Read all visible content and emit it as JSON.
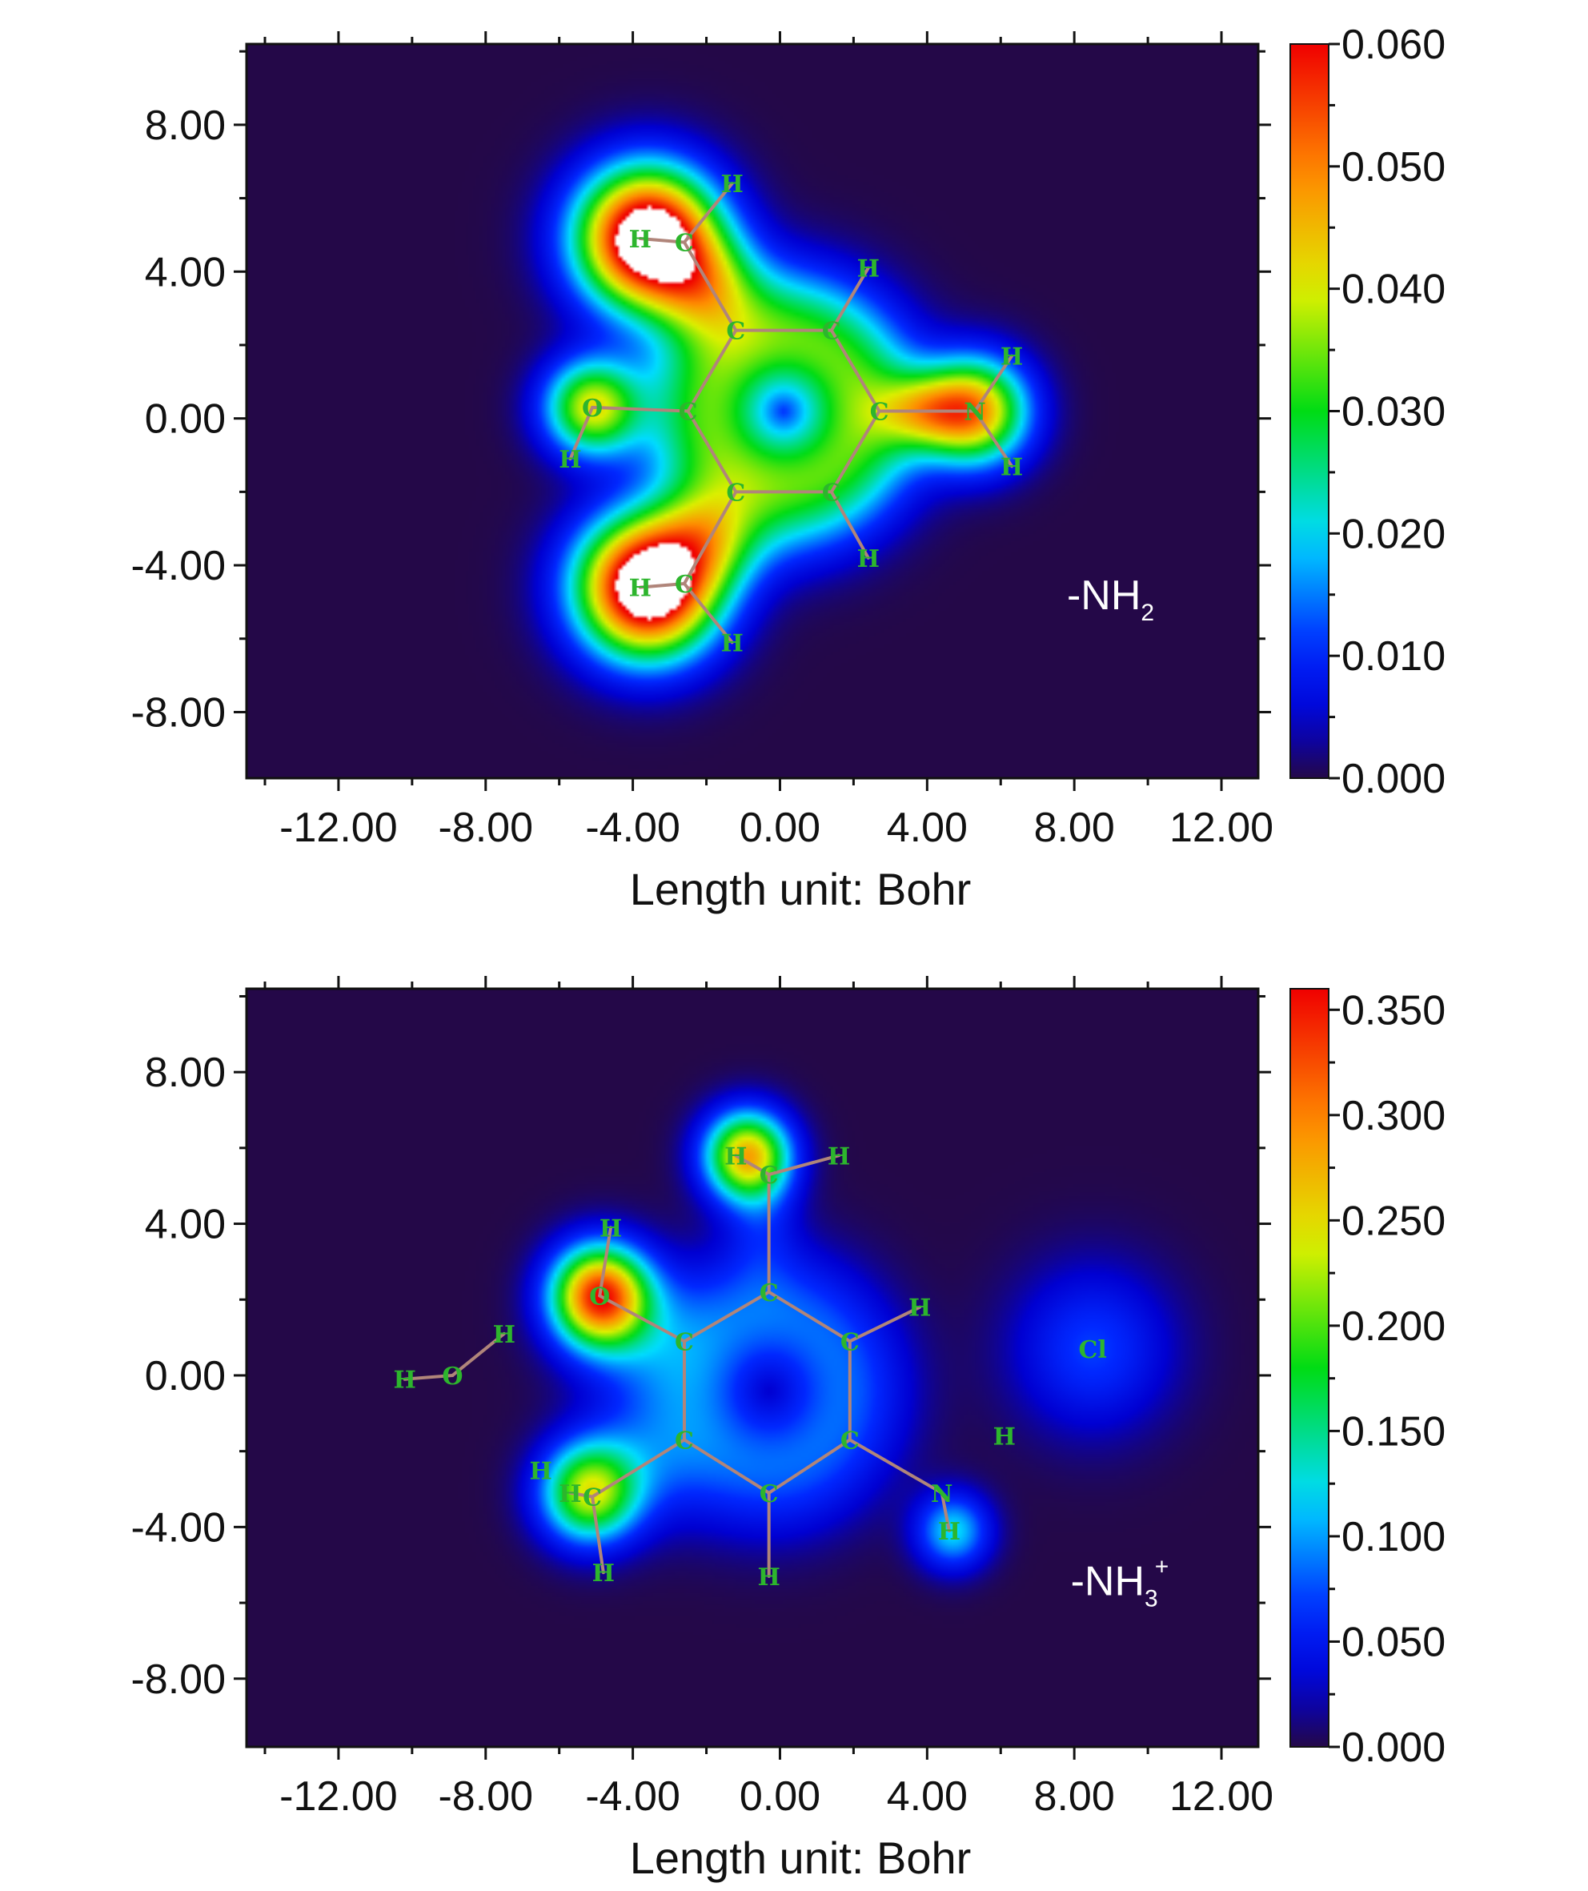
{
  "chart_data": [
    {
      "type": "heatmap",
      "title": "",
      "annotation": "-NH",
      "annotation_sub": "2",
      "annotation_sup": "",
      "xlabel": "Length unit: Bohr",
      "ylabel": "",
      "xlim": [
        -14.5,
        13
      ],
      "ylim": [
        -9.8,
        10.2
      ],
      "xticks": [
        "-12.00",
        "-8.00",
        "-4.00",
        "0.00",
        "4.00",
        "8.00",
        "12.00"
      ],
      "xtick_values": [
        -12,
        -8,
        -4,
        0,
        4,
        8,
        12
      ],
      "yticks": [
        "8.00",
        "4.00",
        "0.00",
        "-4.00",
        "-8.00"
      ],
      "ytick_values": [
        8,
        4,
        0,
        -4,
        -8
      ],
      "colorbar": {
        "min": 0,
        "max": 0.06,
        "ticks": [
          "0.060",
          "0.050",
          "0.040",
          "0.030",
          "0.020",
          "0.010",
          "0.000"
        ],
        "tick_values": [
          0.06,
          0.05,
          0.04,
          0.03,
          0.02,
          0.01,
          0.0
        ]
      },
      "atoms": [
        {
          "label": "C",
          "x": -1.2,
          "y": 2.4
        },
        {
          "label": "C",
          "x": 1.4,
          "y": 2.4
        },
        {
          "label": "C",
          "x": 2.7,
          "y": 0.2
        },
        {
          "label": "C",
          "x": 1.4,
          "y": -2.0
        },
        {
          "label": "C",
          "x": -1.2,
          "y": -2.0
        },
        {
          "label": "C",
          "x": -2.5,
          "y": 0.2
        },
        {
          "label": "O",
          "x": -5.1,
          "y": 0.3
        },
        {
          "label": "H",
          "x": -5.7,
          "y": -1.1
        },
        {
          "label": "C",
          "x": -2.6,
          "y": 4.8
        },
        {
          "label": "H",
          "x": -3.8,
          "y": 4.9
        },
        {
          "label": "H",
          "x": -1.3,
          "y": 6.4
        },
        {
          "label": "H",
          "x": 2.4,
          "y": 4.1
        },
        {
          "label": "N",
          "x": 5.3,
          "y": 0.2
        },
        {
          "label": "H",
          "x": 6.3,
          "y": 1.7
        },
        {
          "label": "H",
          "x": 6.3,
          "y": -1.3
        },
        {
          "label": "H",
          "x": 2.4,
          "y": -3.8
        },
        {
          "label": "C",
          "x": -2.6,
          "y": -4.5
        },
        {
          "label": "H",
          "x": -3.8,
          "y": -4.6
        },
        {
          "label": "H",
          "x": -1.3,
          "y": -6.1
        }
      ],
      "bonds": [
        [
          0,
          1
        ],
        [
          1,
          2
        ],
        [
          2,
          3
        ],
        [
          3,
          4
        ],
        [
          4,
          5
        ],
        [
          5,
          0
        ],
        [
          5,
          6
        ],
        [
          6,
          7
        ],
        [
          0,
          8
        ],
        [
          8,
          9
        ],
        [
          8,
          10
        ],
        [
          1,
          11
        ],
        [
          2,
          12
        ],
        [
          12,
          13
        ],
        [
          12,
          14
        ],
        [
          3,
          15
        ],
        [
          4,
          16
        ],
        [
          16,
          17
        ],
        [
          16,
          18
        ]
      ],
      "density_peaks": [
        {
          "x": -3.6,
          "y": 4.9,
          "sx": 1.3,
          "sy": 1.3,
          "v": 0.075
        },
        {
          "x": -3.6,
          "y": -4.6,
          "sx": 1.3,
          "sy": 1.3,
          "v": 0.075
        },
        {
          "x": 5.3,
          "y": 0.2,
          "sx": 1.0,
          "sy": 1.0,
          "v": 0.046
        },
        {
          "x": -5.1,
          "y": 0.3,
          "sx": 0.9,
          "sy": 0.9,
          "v": 0.04
        },
        {
          "x": 0.1,
          "y": 0.2,
          "sx": 2.6,
          "sy": 2.6,
          "v": 0.034,
          "ring": true
        },
        {
          "x": -2.0,
          "y": 3.6,
          "sx": 1.0,
          "sy": 1.0,
          "v": 0.022
        },
        {
          "x": -2.0,
          "y": -3.3,
          "sx": 1.0,
          "sy": 1.0,
          "v": 0.022
        },
        {
          "x": 3.9,
          "y": 0.2,
          "sx": 0.9,
          "sy": 0.7,
          "v": 0.022
        }
      ]
    },
    {
      "type": "heatmap",
      "title": "",
      "annotation": "-NH",
      "annotation_sub": "3",
      "annotation_sup": "+",
      "xlabel": "Length unit: Bohr",
      "ylabel": "",
      "xlim": [
        -14.5,
        13
      ],
      "ylim": [
        -9.8,
        10.2
      ],
      "xticks": [
        "-12.00",
        "-8.00",
        "-4.00",
        "0.00",
        "4.00",
        "8.00",
        "12.00"
      ],
      "xtick_values": [
        -12,
        -8,
        -4,
        0,
        4,
        8,
        12
      ],
      "yticks": [
        "8.00",
        "4.00",
        "0.00",
        "-4.00",
        "-8.00"
      ],
      "ytick_values": [
        8,
        4,
        0,
        -4,
        -8
      ],
      "colorbar": {
        "min": 0,
        "max": 0.36,
        "ticks": [
          "0.350",
          "0.300",
          "0.250",
          "0.200",
          "0.150",
          "0.100",
          "0.050",
          "0.000"
        ],
        "tick_values": [
          0.35,
          0.3,
          0.25,
          0.2,
          0.15,
          0.1,
          0.05,
          0.0
        ]
      },
      "atoms": [
        {
          "label": "C",
          "x": -0.3,
          "y": 2.2
        },
        {
          "label": "C",
          "x": 1.9,
          "y": 0.9
        },
        {
          "label": "C",
          "x": 1.9,
          "y": -1.7
        },
        {
          "label": "C",
          "x": -0.3,
          "y": -3.1
        },
        {
          "label": "C",
          "x": -2.6,
          "y": -1.7
        },
        {
          "label": "C",
          "x": -2.6,
          "y": 0.9
        },
        {
          "label": "O",
          "x": -4.9,
          "y": 2.1
        },
        {
          "label": "H",
          "x": -4.6,
          "y": 3.9
        },
        {
          "label": "C",
          "x": -0.3,
          "y": 5.3
        },
        {
          "label": "H",
          "x": -1.2,
          "y": 5.8
        },
        {
          "label": "H",
          "x": 1.6,
          "y": 5.8
        },
        {
          "label": "H",
          "x": 3.8,
          "y": 1.8
        },
        {
          "label": "N",
          "x": 4.4,
          "y": -3.1
        },
        {
          "label": "H",
          "x": 4.6,
          "y": -4.1
        },
        {
          "label": "H",
          "x": 6.1,
          "y": -1.6
        },
        {
          "label": "H",
          "x": -0.3,
          "y": -5.3
        },
        {
          "label": "C",
          "x": -5.1,
          "y": -3.2
        },
        {
          "label": "H",
          "x": -5.7,
          "y": -3.1
        },
        {
          "label": "H",
          "x": -6.5,
          "y": -2.5
        },
        {
          "label": "H",
          "x": -4.8,
          "y": -5.2
        },
        {
          "label": "H",
          "x": -7.5,
          "y": 1.1
        },
        {
          "label": "O",
          "x": -8.9,
          "y": 0.0
        },
        {
          "label": "H",
          "x": -10.2,
          "y": -0.1
        },
        {
          "label": "Cl",
          "x": 8.5,
          "y": 0.7
        }
      ],
      "bonds": [
        [
          0,
          1
        ],
        [
          1,
          2
        ],
        [
          2,
          3
        ],
        [
          3,
          4
        ],
        [
          4,
          5
        ],
        [
          5,
          0
        ],
        [
          5,
          6
        ],
        [
          6,
          7
        ],
        [
          0,
          8
        ],
        [
          8,
          9
        ],
        [
          8,
          10
        ],
        [
          1,
          11
        ],
        [
          2,
          12
        ],
        [
          12,
          13
        ],
        [
          3,
          15
        ],
        [
          4,
          16
        ],
        [
          16,
          17
        ],
        [
          16,
          19
        ],
        [
          20,
          21
        ],
        [
          21,
          22
        ]
      ],
      "density_peaks": [
        {
          "x": -4.9,
          "y": 2.1,
          "sx": 0.9,
          "sy": 0.9,
          "v": 0.33
        },
        {
          "x": -0.9,
          "y": 5.8,
          "sx": 0.8,
          "sy": 0.8,
          "v": 0.27
        },
        {
          "x": -5.2,
          "y": -3.1,
          "sx": 0.9,
          "sy": 0.9,
          "v": 0.22
        },
        {
          "x": 4.7,
          "y": -4.1,
          "sx": 0.7,
          "sy": 0.7,
          "v": 0.12
        },
        {
          "x": -0.3,
          "y": -0.4,
          "sx": 2.6,
          "sy": 2.6,
          "v": 0.085,
          "ring": true
        },
        {
          "x": 8.5,
          "y": 0.7,
          "sx": 1.5,
          "sy": 1.5,
          "v": 0.07
        },
        {
          "x": -4.0,
          "y": 1.1,
          "sx": 1.3,
          "sy": 1.3,
          "v": 0.05
        },
        {
          "x": -4.0,
          "y": -2.4,
          "sx": 1.2,
          "sy": 1.2,
          "v": 0.05
        },
        {
          "x": -0.5,
          "y": 4.2,
          "sx": 0.7,
          "sy": 1.2,
          "v": 0.04
        }
      ]
    }
  ]
}
